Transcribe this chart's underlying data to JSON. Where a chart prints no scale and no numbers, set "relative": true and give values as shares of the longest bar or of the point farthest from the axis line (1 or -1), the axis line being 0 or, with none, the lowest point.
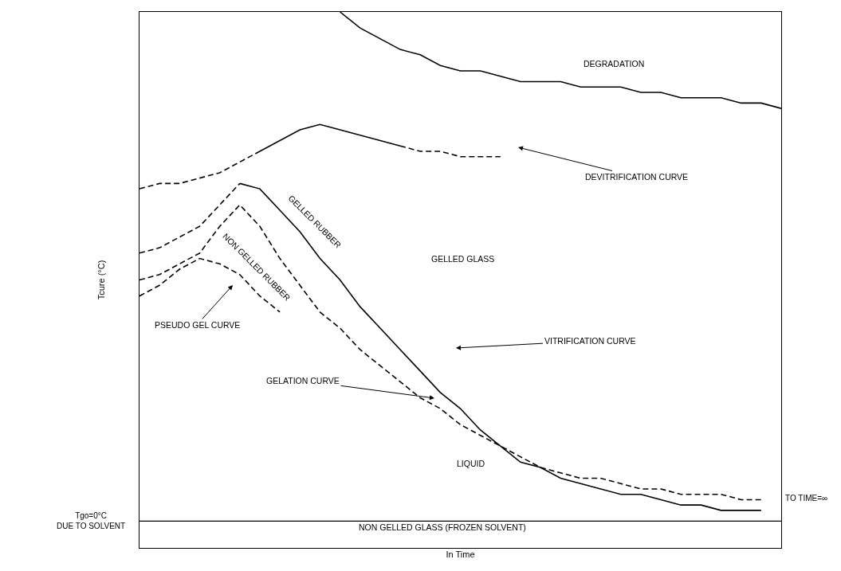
{
  "chart_data": {
    "type": "line",
    "relative": true,
    "xlabel": "In Time",
    "ylabel": "Tcure (°C)",
    "tick_labels": false,
    "marker": "none",
    "categories": [
      null,
      null,
      null,
      null,
      null,
      null,
      null,
      null,
      null,
      null,
      null,
      null,
      null,
      null,
      null,
      null,
      null,
      null,
      null,
      null,
      null,
      null,
      null,
      null,
      null,
      null,
      null,
      null,
      null,
      null,
      null,
      null,
      null
    ],
    "series": [
      {
        "color": "#000000",
        "line_style": "solid",
        "values": [
          null,
          null,
          null,
          null,
          null,
          null,
          null,
          null,
          null,
          null,
          1.0,
          0.97,
          0.95,
          0.93,
          0.92,
          0.9,
          0.89,
          0.89,
          0.88,
          0.87,
          0.87,
          0.87,
          0.86,
          0.86,
          0.86,
          0.85,
          0.85,
          0.84,
          0.84,
          0.84,
          0.83,
          0.83,
          0.82
        ]
      },
      {
        "color": "#000000",
        "line_style": "dashed",
        "values": [
          0.67,
          0.68,
          0.68,
          0.69,
          0.7,
          0.72,
          0.74,
          null,
          null,
          null,
          null,
          null,
          null,
          null,
          null,
          null,
          null,
          null,
          null,
          null,
          null,
          null,
          null,
          null,
          null,
          null,
          null,
          null,
          null,
          null,
          null,
          null,
          null
        ]
      },
      {
        "color": "#000000",
        "line_style": "solid",
        "values": [
          null,
          null,
          null,
          null,
          null,
          null,
          0.74,
          0.76,
          0.78,
          0.79,
          0.78,
          0.77,
          0.76,
          0.75,
          null,
          null,
          null,
          null,
          null,
          null,
          null,
          null,
          null,
          null,
          null,
          null,
          null,
          null,
          null,
          null,
          null,
          null,
          null
        ]
      },
      {
        "color": "#000000",
        "line_style": "dashed",
        "values": [
          null,
          null,
          null,
          null,
          null,
          null,
          null,
          null,
          null,
          null,
          null,
          null,
          null,
          0.75,
          0.74,
          0.74,
          0.73,
          0.73,
          0.73,
          null,
          null,
          null,
          null,
          null,
          null,
          null,
          null,
          null,
          null,
          null,
          null,
          null,
          null
        ]
      },
      {
        "color": "#000000",
        "line_style": "dashed",
        "values": [
          0.55,
          0.56,
          0.58,
          0.6,
          0.64,
          0.68,
          null,
          null,
          null,
          null,
          null,
          null,
          null,
          null,
          null,
          null,
          null,
          null,
          null,
          null,
          null,
          null,
          null,
          null,
          null,
          null,
          null,
          null,
          null,
          null,
          null,
          null,
          null
        ]
      },
      {
        "color": "#000000",
        "line_style": "solid",
        "values": [
          null,
          null,
          null,
          null,
          null,
          0.68,
          0.67,
          0.63,
          0.59,
          0.54,
          0.5,
          0.45,
          0.41,
          0.37,
          0.33,
          0.29,
          0.26,
          0.22,
          0.19,
          0.16,
          0.15,
          0.13,
          0.12,
          0.11,
          0.1,
          0.1,
          0.09,
          0.08,
          0.08,
          0.07,
          0.07,
          0.07,
          null
        ]
      },
      {
        "color": "#000000",
        "line_style": "dashed",
        "values": [
          0.5,
          0.51,
          0.53,
          0.55,
          0.6,
          0.64,
          0.6,
          0.54,
          0.49,
          0.44,
          0.41,
          0.37,
          0.34,
          0.31,
          0.28,
          0.26,
          0.23,
          0.21,
          0.19,
          0.17,
          0.15,
          0.14,
          0.13,
          0.13,
          0.12,
          0.11,
          0.11,
          0.1,
          0.1,
          0.1,
          0.09,
          0.09,
          null
        ]
      },
      {
        "color": "#000000",
        "line_style": "dashed",
        "values": [
          0.47,
          0.49,
          0.52,
          0.54,
          0.53,
          0.51,
          0.47,
          0.44,
          null,
          null,
          null,
          null,
          null,
          null,
          null,
          null,
          null,
          null,
          null,
          null,
          null,
          null,
          null,
          null,
          null,
          null,
          null,
          null,
          null,
          null,
          null,
          null,
          null
        ]
      }
    ],
    "ref_lines": [
      {
        "axis": "y",
        "value": 0.05,
        "label": "Tgo=0°C\nDUE TO SOLVENT",
        "color": "#000000",
        "line_style": "solid"
      }
    ],
    "annotations": [
      "DEGRADATION",
      "DEVITRIFICATION CURVE",
      "GELLED GLASS",
      "GELLED RUBBER",
      "NON GELLED RUBBER",
      "PSEUDO GEL CURVE",
      "VITRIFICATION CURVE",
      "GELATION CURVE",
      "LIQUID",
      "TO TIME=∞",
      "NON GELLED GLASS (FROZEN SOLVENT)"
    ]
  }
}
